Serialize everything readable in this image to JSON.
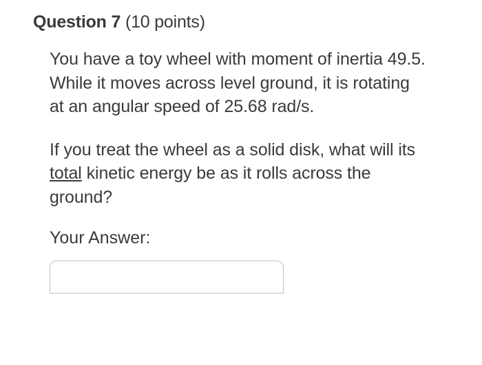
{
  "question": {
    "label": "Question 7",
    "points": "(10 points)",
    "paragraph1_part1": "You have a toy wheel with moment of inertia 49.5. While it moves across level ground, it is rotating at an angular speed of 25.68 rad/s.",
    "paragraph2_part1": "If you treat the wheel as a solid disk, what will its ",
    "paragraph2_underlined": "total",
    "paragraph2_part2": " kinetic energy be as it rolls across the ground?",
    "answer_label": "Your Answer:",
    "answer_value": ""
  },
  "styling": {
    "background_color": "#ffffff",
    "text_color": "#3a3a3a",
    "font_size_header": 25,
    "font_size_body": 25,
    "input_border_color": "#c0c0c0",
    "input_border_radius": 10
  }
}
